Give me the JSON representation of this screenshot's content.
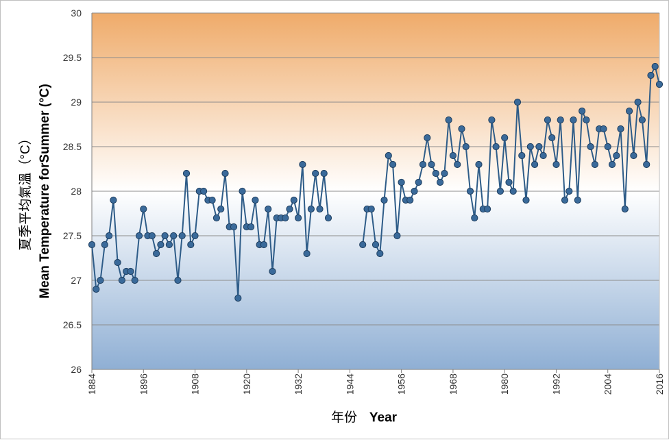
{
  "chart_data": {
    "type": "line",
    "title": "",
    "xlabel_zh": "年份",
    "xlabel_en": "Year",
    "ylabel_zh": "夏季平均氣溫（°C）",
    "ylabel_en": "Mean Temperature forSummer (°C)",
    "ylim": [
      26,
      30
    ],
    "ytick_step": 0.5,
    "ytick_labels": [
      "26",
      "26.5",
      "27",
      "27.5",
      "28",
      "28.5",
      "29",
      "29.5",
      "30"
    ],
    "xlim": [
      1884,
      2016
    ],
    "xtick_labels": [
      "1884",
      "1896",
      "1908",
      "1920",
      "1932",
      "1944",
      "1956",
      "1968",
      "1980",
      "1992",
      "2004",
      "2016"
    ],
    "grid": true,
    "legend": "none",
    "colors": {
      "line": "#2e5c88",
      "marker_fill": "#3a6a9a",
      "marker_edge": "#1f3f60",
      "band_top": "#efab6a",
      "band_mid": "#ffffff",
      "band_bottom": "#8fafd4",
      "grid": "#8c8c8c"
    },
    "series": [
      {
        "name": "Mean Temperature for Summer",
        "segments": [
          {
            "start_year": 1884,
            "values": [
              27.4,
              26.9,
              27.0,
              27.4,
              27.5,
              27.9,
              27.2,
              27.0,
              27.1,
              27.1,
              27.0,
              27.5,
              27.8,
              27.5,
              27.5,
              27.3,
              27.4,
              27.5,
              27.4,
              27.5,
              27.0,
              27.5,
              28.2,
              27.4,
              27.5,
              28.0,
              28.0,
              27.9,
              27.9,
              27.7,
              27.8,
              28.2,
              27.6,
              27.6,
              26.8,
              28.0,
              27.6,
              27.6,
              27.9,
              27.4,
              27.4,
              27.8,
              27.1,
              27.7,
              27.7,
              27.7,
              27.8,
              27.9,
              27.7,
              28.3,
              27.3,
              27.8,
              28.2,
              27.8,
              28.2,
              27.7
            ]
          },
          {
            "start_year": 1947,
            "values": [
              27.4,
              27.8,
              27.8,
              27.4,
              27.3,
              27.9,
              28.4,
              28.3,
              27.5,
              28.1,
              27.9,
              27.9,
              28.0,
              28.1,
              28.3,
              28.6,
              28.3,
              28.2,
              28.1,
              28.2,
              28.8,
              28.4,
              28.3,
              28.7,
              28.5,
              28.0,
              27.7,
              28.3,
              27.8,
              27.8,
              28.8,
              28.5,
              28.0,
              28.6,
              28.1,
              28.0,
              29.0,
              28.4,
              27.9,
              28.5,
              28.3,
              28.5,
              28.4,
              28.8,
              28.6,
              28.3,
              28.8,
              27.9,
              28.0,
              28.8,
              27.9,
              28.9,
              28.8,
              28.5,
              28.3,
              28.7,
              28.7,
              28.5,
              28.3,
              28.4,
              28.7,
              27.8,
              28.9,
              28.4,
              29.0,
              28.8,
              28.3,
              29.3,
              29.4,
              29.2
            ]
          }
        ]
      }
    ]
  }
}
